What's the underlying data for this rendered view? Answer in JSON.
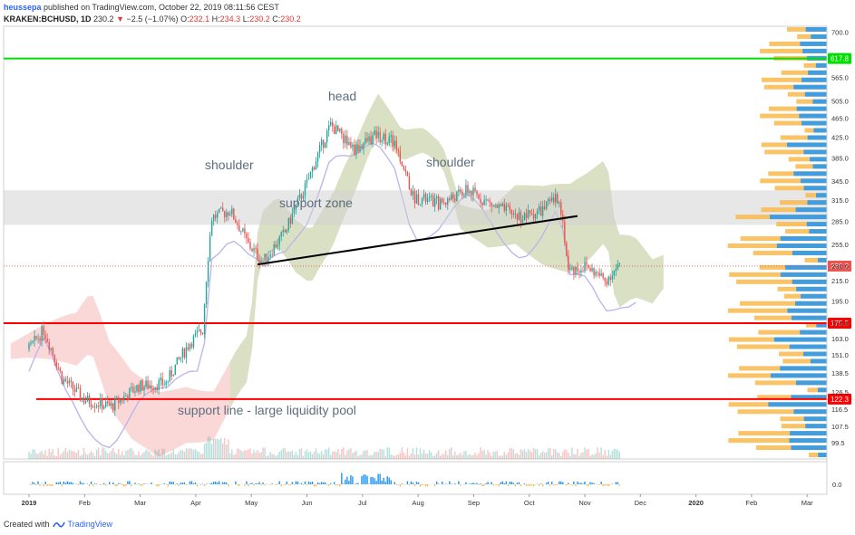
{
  "header": {
    "author": "heussepa",
    "published": "published on TradingView.com, October 22, 2019 08:11:56 CEST",
    "symbol": "KRAKEN:BCHUSD, 1D",
    "last": "230.2",
    "change_arrow": "▼",
    "change": "−2.5 (−1.07%)",
    "o_label": "O:",
    "o": "232.1",
    "h_label": "H:",
    "h": "234.3",
    "l_label": "L:",
    "l": "230.2",
    "c_label": "C:",
    "c": "230.2"
  },
  "footer": {
    "created_with": "Created with",
    "brand": "TradingView",
    "logo_icon": "tradingview-logo-icon"
  },
  "colors": {
    "up": "#26a69a",
    "down": "#ef5350",
    "green_line": "#00e000",
    "red_line": "#ff0000",
    "cloud_red": "#f8b8b8",
    "cloud_green": "#b9e8b0",
    "volume_profile_blue": "#2196f3",
    "volume_profile_orange": "#f9b84b"
  },
  "chart_data": {
    "type": "candlestick",
    "scale": "log",
    "ylim": [
      92,
      720
    ],
    "x_tick_labels": [
      "2019",
      "Feb",
      "Mar",
      "Apr",
      "May",
      "Jun",
      "Jul",
      "Aug",
      "Sep",
      "Oct",
      "Nov",
      "Dec",
      "2020",
      "Feb",
      "Mar"
    ],
    "y_tick_labels": [
      "700.0",
      "565.0",
      "505.0",
      "465.0",
      "425.0",
      "385.0",
      "345.0",
      "315.0",
      "285.0",
      "255.0",
      "230.0",
      "215.0",
      "195.0",
      "175.5",
      "163.0",
      "151.0",
      "138.5",
      "126.5",
      "116.5",
      "107.5",
      "99.5"
    ],
    "oscillator_tick_label": "0.0",
    "candles_sampled": [
      {
        "period": "Jan 2019",
        "close": 160
      },
      {
        "period": "Feb 2019",
        "close": 122
      },
      {
        "period": "Mar 2019",
        "close": 135
      },
      {
        "period": "Apr 2019",
        "close": 290
      },
      {
        "period": "May 2019",
        "close": 300
      },
      {
        "period": "Jun 2019",
        "close": 420
      },
      {
        "period": "Jul 2019",
        "close": 330
      },
      {
        "period": "Aug 2019",
        "close": 310
      },
      {
        "period": "Sep 2019",
        "close": 300
      },
      {
        "period": "Oct 2019",
        "close": 230.2
      }
    ],
    "horizontal_lines": [
      {
        "label": "617.8",
        "value": 617.8,
        "color": "#00e000"
      },
      {
        "label": "175.5",
        "value": 175.5,
        "color": "#ff0000"
      },
      {
        "label": "122.3",
        "value": 122.3,
        "color": "#ff0000"
      }
    ],
    "last_price_label": "230.2",
    "support_zone": {
      "from": 280,
      "to": 330
    },
    "annotations": [
      {
        "text": "head"
      },
      {
        "text": "shoulder"
      },
      {
        "text": "shoulder"
      },
      {
        "text": "support zone"
      },
      {
        "text": "support line - large liquidity pool"
      }
    ]
  }
}
